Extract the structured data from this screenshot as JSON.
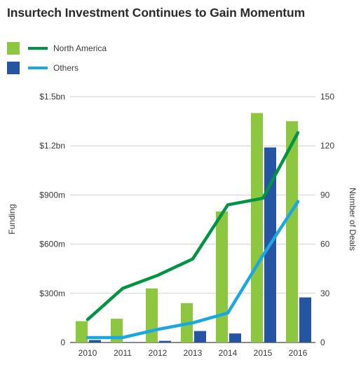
{
  "colors": {
    "na_bar": "#8dc63f",
    "others_bar": "#2554a3",
    "na_line": "#009444",
    "others_line": "#1ba7e1",
    "grid": "#cfcfcf",
    "axis": "#444444"
  },
  "chart_data": {
    "type": "bar",
    "title": "Insurtech Investment Continues to Gain Momentum",
    "categories": [
      "2010",
      "2011",
      "2012",
      "2013",
      "2014",
      "2015",
      "2016"
    ],
    "ylabel": "Funding",
    "y2label": "Number of Deals",
    "ylim": [
      0,
      1500
    ],
    "y2lim": [
      0,
      150
    ],
    "yticks": [
      0,
      300,
      600,
      900,
      1200,
      1500
    ],
    "ytick_labels": [
      "0",
      "$300m",
      "$600m",
      "$900m",
      "$1.2bn",
      "$1.5bn"
    ],
    "y2ticks": [
      0,
      30,
      60,
      90,
      120,
      150
    ],
    "y2tick_labels": [
      "0",
      "30",
      "60",
      "90",
      "120",
      "150"
    ],
    "grid": true,
    "legend": "top-left",
    "series": [
      {
        "name": "North America",
        "kind": "bar",
        "axis": "left",
        "values": [
          130,
          145,
          330,
          240,
          800,
          1400,
          1350
        ]
      },
      {
        "name": "Others",
        "kind": "bar",
        "axis": "left",
        "values": [
          15,
          2,
          10,
          70,
          55,
          1190,
          275
        ]
      },
      {
        "name": "North America",
        "kind": "line",
        "axis": "right",
        "values": [
          14,
          33,
          41,
          51,
          84,
          88,
          128
        ]
      },
      {
        "name": "Others",
        "kind": "line",
        "axis": "right",
        "values": [
          3,
          3,
          8,
          12,
          18,
          53,
          86
        ]
      }
    ]
  }
}
